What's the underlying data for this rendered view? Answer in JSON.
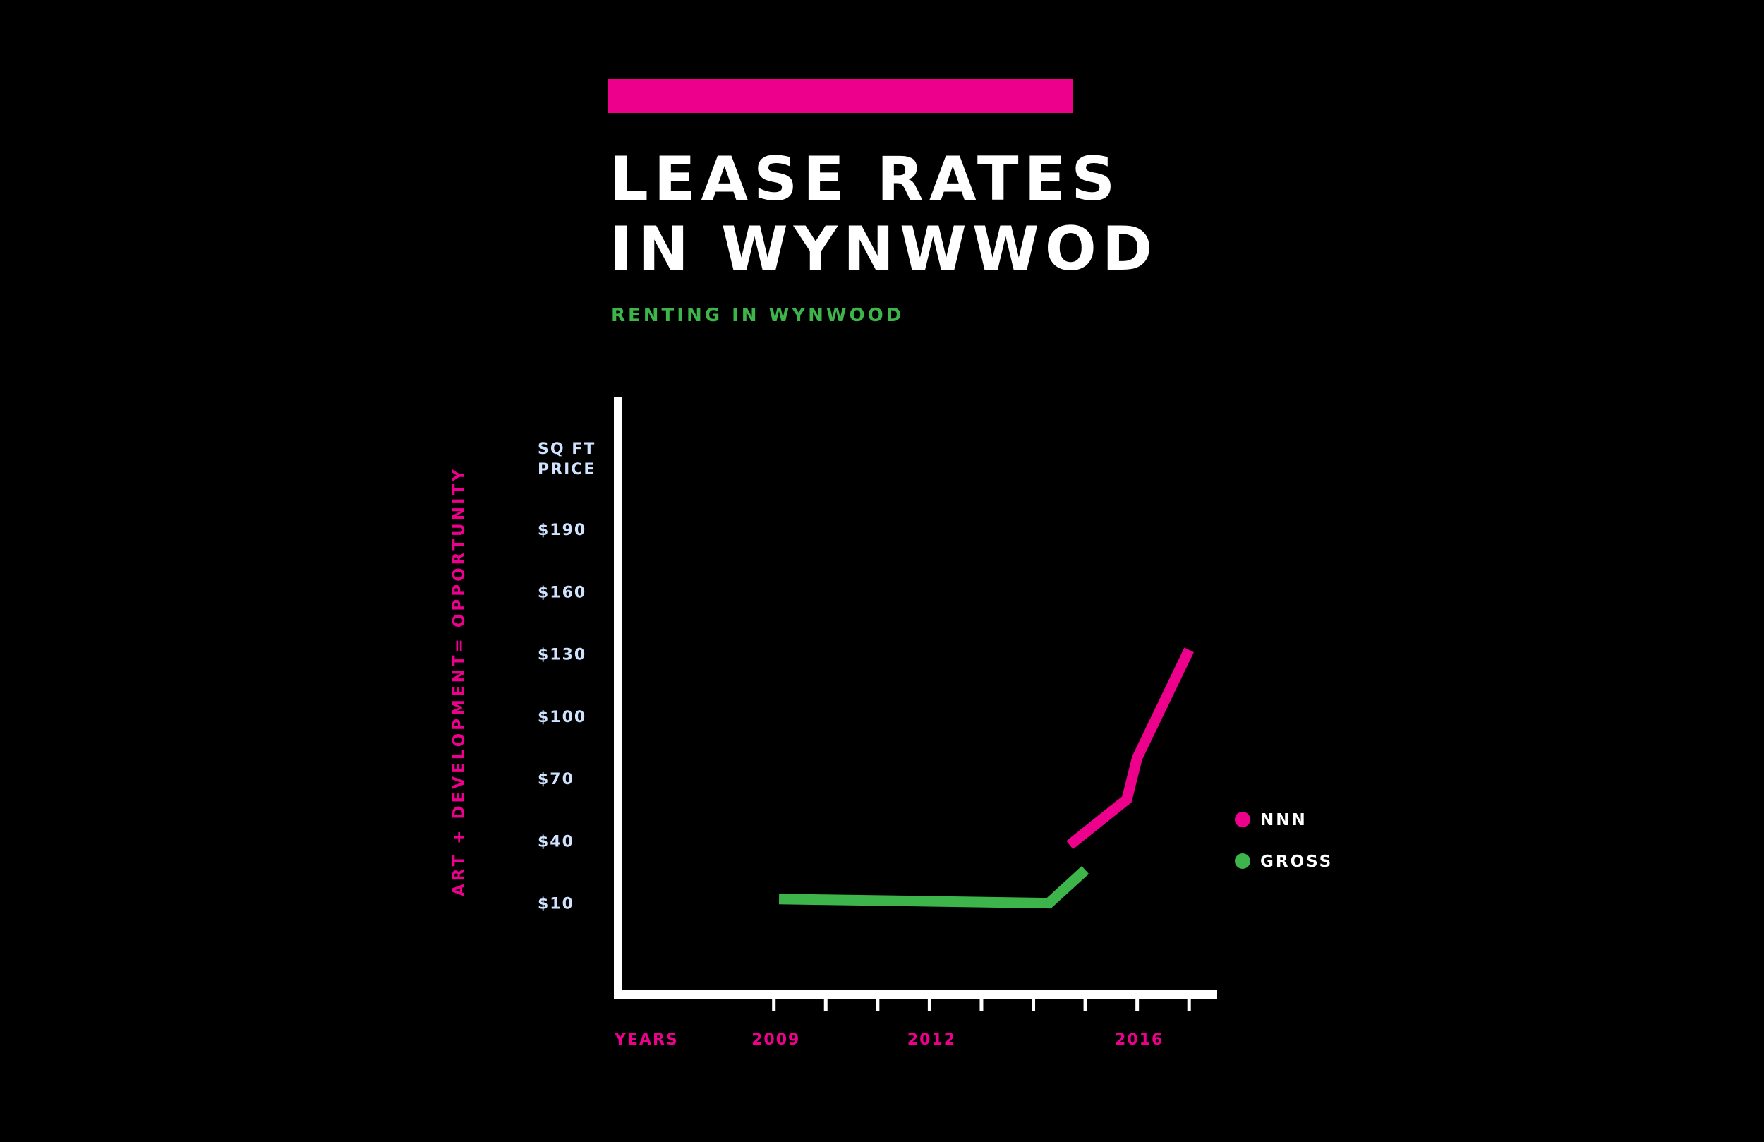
{
  "colors": {
    "background": "#000000",
    "accent": "#ec008c",
    "green": "#3db54a",
    "axis": "#ffffff",
    "tick_label": "#cfe3ff"
  },
  "chart_data": {
    "type": "line",
    "title_lines": [
      "LEASE RATES",
      "IN WYNWWOD"
    ],
    "subtitle": "RENTING IN WYNWOOD",
    "side_label": "ART + DEVELOPMENT= OPPORTUNITY",
    "ylabel_lines": [
      "SQ FT",
      "PRICE"
    ],
    "xlabel": "YEARS",
    "y_ticks": [
      {
        "value": 10,
        "label": "$10"
      },
      {
        "value": 40,
        "label": "$40"
      },
      {
        "value": 70,
        "label": "$70"
      },
      {
        "value": 100,
        "label": "$100"
      },
      {
        "value": 130,
        "label": "$130"
      },
      {
        "value": 160,
        "label": "$160"
      },
      {
        "value": 190,
        "label": "$190"
      }
    ],
    "x_ticks": [
      2009,
      2010,
      2011,
      2012,
      2013,
      2014,
      2015,
      2016,
      2017
    ],
    "x_tick_labels": [
      {
        "value": 2009,
        "label": "2009"
      },
      {
        "value": 2012,
        "label": "2012"
      },
      {
        "value": 2016,
        "label": "2016"
      }
    ],
    "xlim": [
      2006,
      2017.5
    ],
    "ylim": [
      -34,
      254
    ],
    "series": [
      {
        "name": "NNN",
        "color": "#ec008c",
        "points": [
          [
            2014.7,
            38
          ],
          [
            2015.8,
            60
          ],
          [
            2016.0,
            80
          ],
          [
            2017.0,
            132
          ]
        ]
      },
      {
        "name": "GROSS",
        "color": "#3db54a",
        "points": [
          [
            2009.1,
            12
          ],
          [
            2014.3,
            10
          ],
          [
            2015.0,
            26
          ]
        ]
      }
    ],
    "legend": [
      {
        "name": "NNN",
        "color": "#ec008c"
      },
      {
        "name": "GROSS",
        "color": "#3db54a"
      }
    ],
    "legend_position": "right",
    "grid": false
  }
}
